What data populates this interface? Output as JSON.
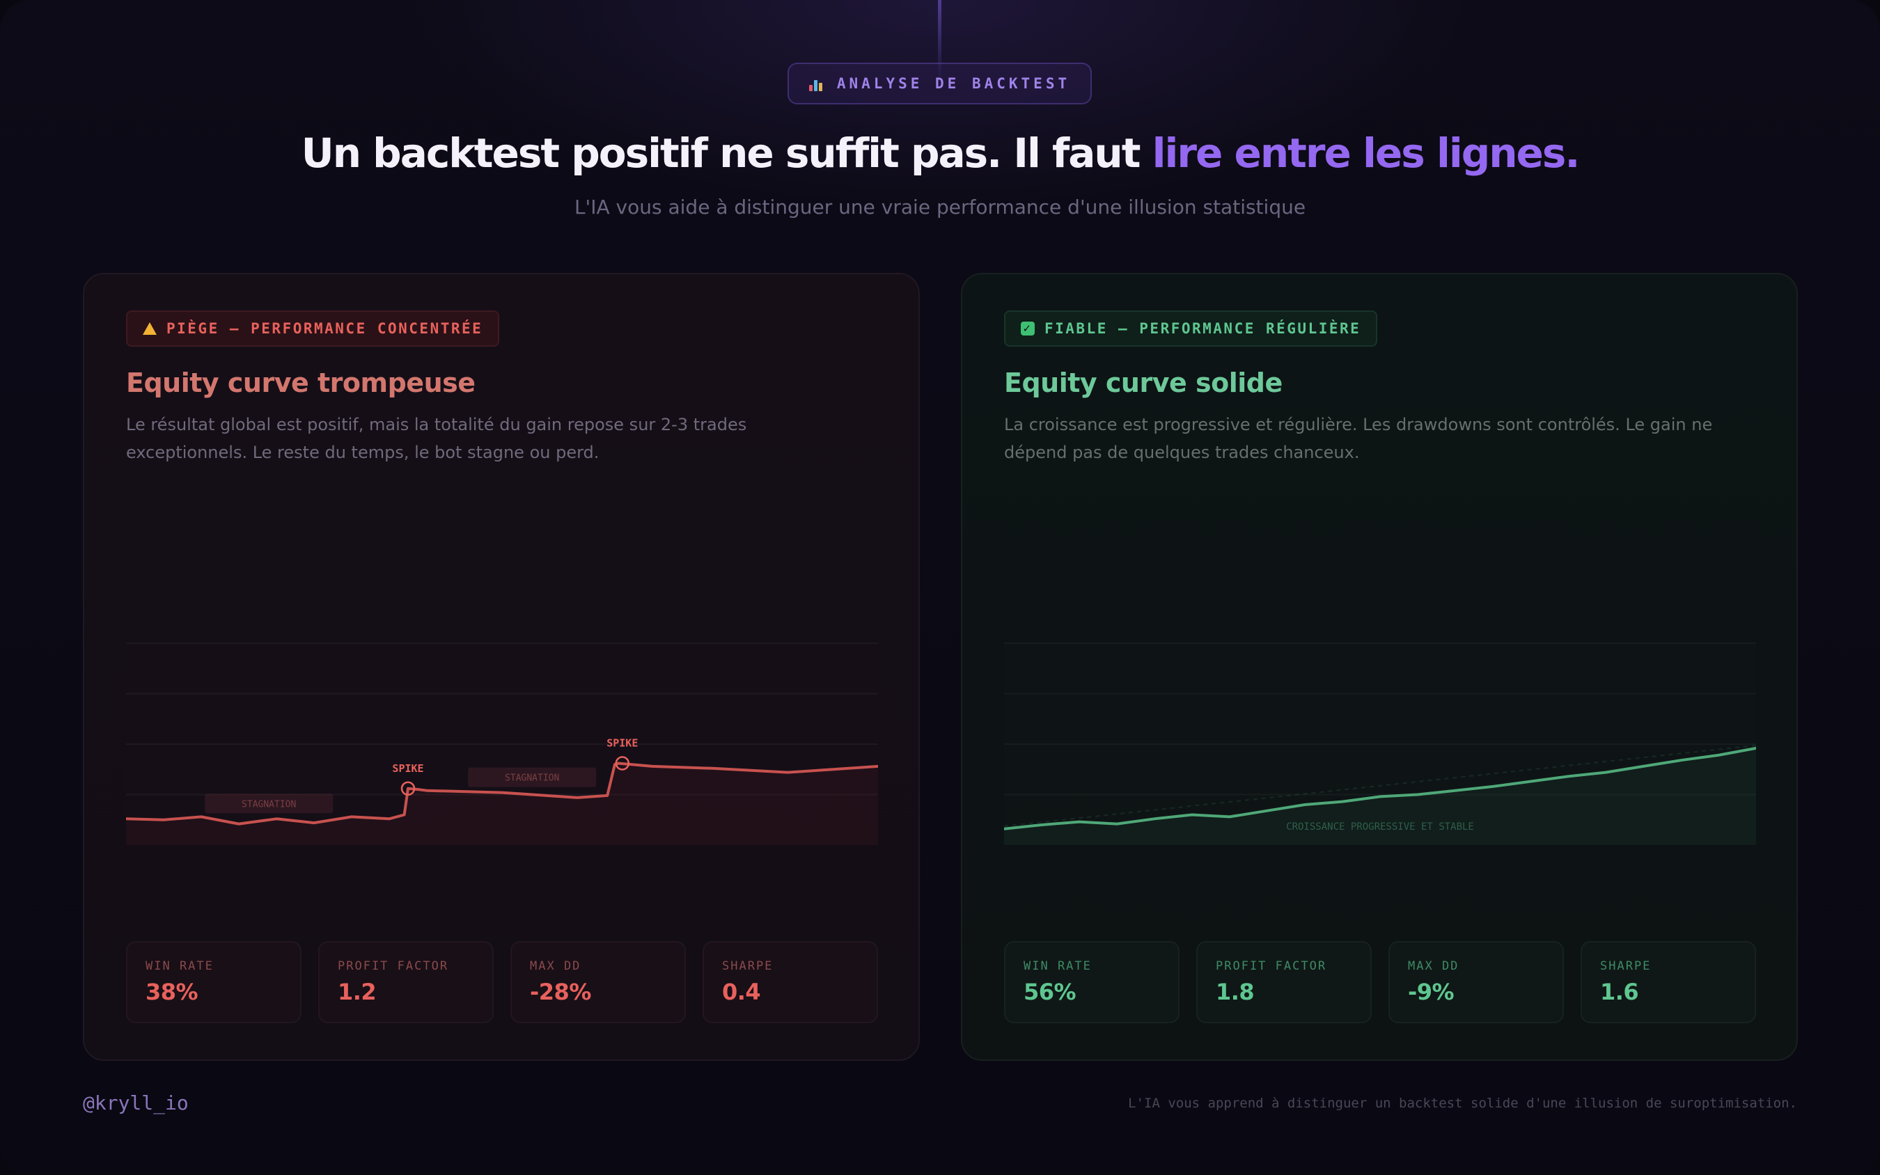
{
  "header": {
    "badge": "ANALYSE DE BACKTEST",
    "badge_icon": "bar-chart-icon",
    "title_main": "Un backtest positif ne suffit pas. Il faut ",
    "title_accent": "lire entre les lignes.",
    "subtitle": "L'IA vous aide à distinguer une vraie performance d'une illusion statistique"
  },
  "cards": [
    {
      "tag": "PIÈGE — PERFORMANCE CONCENTRÉE",
      "tag_icon": "warning-icon",
      "title": "Equity curve trompeuse",
      "description": "Le résultat global est positif, mais la totalité du gain repose sur 2-3 trades exceptionnels. Le reste du temps, le bot stagne ou perd.",
      "stats": [
        {
          "label": "WIN RATE",
          "value": "38%"
        },
        {
          "label": "PROFIT FACTOR",
          "value": "1.2"
        },
        {
          "label": "MAX DD",
          "value": "-28%"
        },
        {
          "label": "SHARPE",
          "value": "0.4"
        }
      ]
    },
    {
      "tag": "FIABLE — PERFORMANCE RÉGULIÈRE",
      "tag_icon": "check-icon",
      "title": "Equity curve solide",
      "description": "La croissance est progressive et régulière. Les drawdowns sont contrôlés. Le gain ne dépend pas de quelques trades chanceux.",
      "stats": [
        {
          "label": "WIN RATE",
          "value": "56%"
        },
        {
          "label": "PROFIT FACTOR",
          "value": "1.8"
        },
        {
          "label": "MAX DD",
          "value": "-9%"
        },
        {
          "label": "SHARPE",
          "value": "1.6"
        }
      ]
    }
  ],
  "footer": {
    "handle": "@kryll_io",
    "note": "L'IA vous apprend à distinguer un backtest solide d'une illusion de suroptimisation."
  },
  "colors": {
    "accent": "#9468f0",
    "trap": "#e8615d",
    "reliable": "#5fc690"
  },
  "chart_data": [
    {
      "type": "line",
      "ylim": [
        0,
        100
      ],
      "grid": true,
      "x": [
        0,
        5,
        10,
        15,
        20,
        25,
        30,
        35,
        37,
        37.5,
        39,
        40,
        50,
        60,
        64,
        65,
        65.5,
        67,
        70,
        78,
        88,
        100
      ],
      "values": [
        13,
        12.5,
        14,
        10.5,
        13,
        11,
        14,
        13,
        15,
        28,
        27.5,
        27,
        26,
        23.5,
        24.5,
        40,
        40.5,
        40,
        39,
        38,
        36,
        39
      ],
      "annotations": [
        {
          "text": "SPIKE",
          "x": 37.5,
          "y": 28
        },
        {
          "text": "SPIKE",
          "x": 66,
          "y": 40.5
        },
        {
          "text": "STAGNATION",
          "x": 19
        },
        {
          "text": "STAGNATION",
          "x": 54
        }
      ]
    },
    {
      "type": "line",
      "ylim": [
        0,
        100
      ],
      "grid": true,
      "x": [
        0,
        5,
        10,
        15,
        20,
        25,
        30,
        35,
        40,
        45,
        50,
        55,
        60,
        65,
        70,
        75,
        80,
        85,
        90,
        95,
        100
      ],
      "values": [
        8,
        10,
        11.5,
        10.5,
        13,
        15,
        14,
        17,
        20,
        21.5,
        24,
        25,
        27,
        29,
        31.5,
        34,
        36,
        39,
        42,
        44.5,
        48
      ],
      "annotations": [
        {
          "text": "CROISSANCE PROGRESSIVE ET STABLE",
          "x": 50
        }
      ]
    }
  ]
}
